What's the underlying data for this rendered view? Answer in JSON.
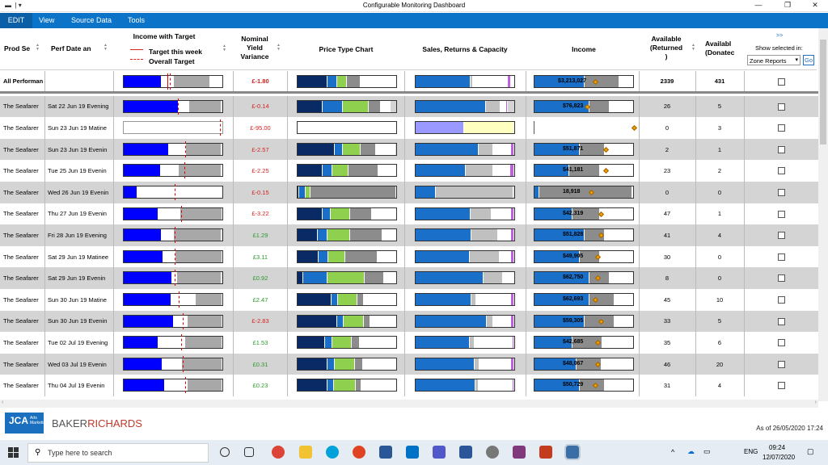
{
  "window": {
    "title": "Configurable Monitoring Dashboard",
    "minimize": "—",
    "maximize": "❐",
    "close": "✕"
  },
  "menu": {
    "items": [
      "EDIT",
      "View",
      "Source Data",
      "Tools"
    ]
  },
  "header": {
    "prod": "Prod Se",
    "perf_date": "Perf Date an",
    "income_target": "Income with Target",
    "legend_week": "Target this week",
    "legend_overall": "Overall Target",
    "nyv_line1": "Nominal",
    "nyv_line2": "Yield",
    "nyv_line3": "Variance",
    "price_type": "Price Type Chart",
    "sales_returns": "Sales, Returns & Capacity",
    "income": "Income",
    "avail_ret1": "Available",
    "avail_ret2": "(Returned",
    "avail_ret3": ")",
    "avail_don1": "Availabl",
    "avail_don2": "(Donatec",
    "show_selected": "Show selected in:",
    "expander": ">>",
    "zone_select": "Zone Reports",
    "go": "Go"
  },
  "colors": {
    "income_blue": "#0000ff",
    "dark_navy": "#0a2a66",
    "mid_blue": "#1a6fc9",
    "light_green": "#8fd14f",
    "grey": "#8c8c8c",
    "light_grey": "#c0c0c0",
    "red_text": "#d42020",
    "green_text": "#2a9a2a",
    "pale_yellow": "#ffffc0",
    "lavender": "#9999ff",
    "violet": "#c060e0",
    "diamond": "#f0a000"
  },
  "rows": [
    {
      "prod": "All Performan",
      "date": "",
      "bold": true,
      "inc": [
        0.38,
        0.12,
        0.36
      ],
      "tgt": 0.47,
      "tgt2": 0.47,
      "nyv": "£-1.80",
      "nyv_color": "red",
      "pt": [
        0.3,
        0.1,
        0.1,
        0.14,
        0.36
      ],
      "src": [
        0.55,
        0.02,
        0.35,
        0.03
      ],
      "incv": "$3,213,027",
      "incb": [
        0.5,
        0.35
      ],
      "dia": 0.6,
      "ret": "2339",
      "don": "431",
      "shade": false
    },
    {
      "prod": "The Seafarer",
      "date": "Sat 22 Jun 19 Evening",
      "inc": [
        0.55,
        0.1,
        0.33
      ],
      "tgt": 0.55,
      "nyv": "£-0.14",
      "nyv_color": "red",
      "pt": [
        0.25,
        0.2,
        0.26,
        0.12,
        0.1
      ],
      "src": [
        0.7,
        0.15,
        0.05,
        0.02
      ],
      "incv": "$76,823",
      "incb": [
        0.55,
        0.2
      ],
      "dia": 0.52,
      "ret": "26",
      "don": "5",
      "shade": true
    },
    {
      "prod": "The Seafarer",
      "date": "Sun 23 Jun 19 Matine",
      "inc": [
        0.0,
        0.0,
        0.0
      ],
      "tgt": 0.97,
      "empty": true,
      "nyv": "£-95.00",
      "nyv_color": "red",
      "pt": [
        0,
        0,
        0,
        0,
        1
      ],
      "ptempty": true,
      "src": [
        0.49,
        0.5,
        0,
        0
      ],
      "srcempty": true,
      "incv": "",
      "incb": [
        0,
        0
      ],
      "dia": 0.98,
      "ret": "0",
      "don": "3",
      "shade": false
    },
    {
      "prod": "The Seafarer",
      "date": "Sun 23 Jun 19 Evenin",
      "inc": [
        0.45,
        0.17,
        0.36
      ],
      "tgt": 0.62,
      "nyv": "£-2.57",
      "nyv_color": "red",
      "pt": [
        0.37,
        0.08,
        0.18,
        0.15,
        0.2
      ],
      "src": [
        0.63,
        0.15,
        0.18,
        0.03
      ],
      "incv": "$51,871",
      "incb": [
        0.45,
        0.25
      ],
      "dia": 0.7,
      "ret": "2",
      "don": "1",
      "shade": true
    },
    {
      "prod": "The Seafarer",
      "date": "Tue 25 Jun 19 Evenin",
      "inc": [
        0.37,
        0.18,
        0.43
      ],
      "tgt": 0.61,
      "nyv": "£-2.25",
      "nyv_color": "red",
      "pt": [
        0.25,
        0.1,
        0.17,
        0.3,
        0.18
      ],
      "src": [
        0.5,
        0.28,
        0.17,
        0.04
      ],
      "incv": "$41,181",
      "incb": [
        0.35,
        0.3
      ],
      "dia": 0.7,
      "ret": "23",
      "don": "2",
      "shade": false
    },
    {
      "prod": "The Seafarer",
      "date": "Wed 26 Jun 19 Evenin",
      "inc": [
        0.14,
        0.84,
        0
      ],
      "tgt": 0.52,
      "nyv": "£-0.15",
      "nyv_color": "red",
      "pt": [
        0.02,
        0.06,
        0.05,
        0.86,
        0
      ],
      "src": [
        0.2,
        0.78,
        0,
        0
      ],
      "incv": "18,918",
      "incb": [
        0.05,
        0.93
      ],
      "dia": 0.56,
      "ret": "0",
      "don": "0",
      "shade": true
    },
    {
      "prod": "The Seafarer",
      "date": "Thu 27 Jun 19 Evenin",
      "inc": [
        0.35,
        0.22,
        0.42
      ],
      "tgt": 0.58,
      "nyv": "£-3.22",
      "nyv_color": "red",
      "pt": [
        0.25,
        0.08,
        0.2,
        0.22,
        0.24
      ],
      "src": [
        0.56,
        0.22,
        0.2,
        0.03
      ],
      "incv": "$42,319",
      "incb": [
        0.38,
        0.27
      ],
      "dia": 0.65,
      "ret": "47",
      "don": "1",
      "shade": false
    },
    {
      "prod": "The Seafarer",
      "date": "Fri 28 Jun 19 Evening",
      "inc": [
        0.38,
        0.12,
        0.48
      ],
      "tgt": 0.52,
      "nyv": "£1.29",
      "nyv_color": "green",
      "pt": [
        0.2,
        0.1,
        0.23,
        0.32,
        0.14
      ],
      "src": [
        0.56,
        0.27,
        0.13,
        0.03
      ],
      "incv": "$51,828",
      "incb": [
        0.5,
        0.2
      ],
      "dia": 0.65,
      "ret": "41",
      "don": "4",
      "shade": true
    },
    {
      "prod": "The Seafarer",
      "date": "Sat 29 Jun 19 Matinee",
      "inc": [
        0.4,
        0.12,
        0.47
      ],
      "tgt": 0.52,
      "nyv": "£3.11",
      "nyv_color": "green",
      "pt": [
        0.21,
        0.1,
        0.17,
        0.32,
        0.19
      ],
      "src": [
        0.55,
        0.3,
        0.12,
        0.03
      ],
      "incv": "$49,905",
      "incb": [
        0.45,
        0.2
      ],
      "dia": 0.62,
      "ret": "30",
      "don": "0",
      "shade": false
    },
    {
      "prod": "The Seafarer",
      "date": "Sat 29 Jun 19 Evenin",
      "inc": [
        0.48,
        0.05,
        0.45
      ],
      "tgt": 0.52,
      "nyv": "£0.92",
      "nyv_color": "green",
      "pt": [
        0.06,
        0.24,
        0.37,
        0.2,
        0.12
      ],
      "src": [
        0.68,
        0.2,
        0.11,
        0
      ],
      "incv": "$62,750",
      "incb": [
        0.55,
        0.2
      ],
      "dia": 0.62,
      "ret": "8",
      "don": "0",
      "shade": true
    },
    {
      "prod": "The Seafarer",
      "date": "Sun 30 Jun 19 Matine",
      "inc": [
        0.48,
        0.25,
        0.27
      ],
      "tgt": 0.56,
      "nyv": "£2.47",
      "nyv_color": "green",
      "pt": [
        0.34,
        0.07,
        0.2,
        0.06,
        0.33
      ],
      "src": [
        0.57,
        0.05,
        0.36,
        0.03
      ],
      "incv": "$62,693",
      "incb": [
        0.55,
        0.25
      ],
      "dia": 0.6,
      "ret": "45",
      "don": "10",
      "shade": false
    },
    {
      "prod": "The Seafarer",
      "date": "Sun 30 Jun 19 Evenin",
      "inc": [
        0.5,
        0.14,
        0.34
      ],
      "tgt": 0.6,
      "nyv": "£-2.83",
      "nyv_color": "red",
      "pt": [
        0.4,
        0.07,
        0.2,
        0.07,
        0.26
      ],
      "src": [
        0.72,
        0.07,
        0.18,
        0.03
      ],
      "incv": "$59,305",
      "incb": [
        0.5,
        0.3
      ],
      "dia": 0.65,
      "ret": "33",
      "don": "5",
      "shade": true
    },
    {
      "prod": "The Seafarer",
      "date": "Tue 02 Jul 19 Evening",
      "inc": [
        0.35,
        0.27,
        0.37
      ],
      "tgt": 0.58,
      "nyv": "£1.53",
      "nyv_color": "green",
      "pt": [
        0.28,
        0.07,
        0.2,
        0.08,
        0.37
      ],
      "src": [
        0.55,
        0.05,
        0.38,
        0.02
      ],
      "incv": "$42,685",
      "incb": [
        0.38,
        0.3
      ],
      "dia": 0.62,
      "ret": "35",
      "don": "6",
      "shade": false
    },
    {
      "prod": "The Seafarer",
      "date": "Wed 03 Jul 19 Evenin",
      "inc": [
        0.39,
        0.19,
        0.41
      ],
      "tgt": 0.6,
      "nyv": "£0.31",
      "nyv_color": "green",
      "pt": [
        0.3,
        0.08,
        0.2,
        0.08,
        0.34
      ],
      "src": [
        0.6,
        0.05,
        0.32,
        0.03
      ],
      "incv": "$48,067",
      "incb": [
        0.42,
        0.25
      ],
      "dia": 0.62,
      "ret": "46",
      "don": "20",
      "shade": true
    },
    {
      "prod": "The Seafarer",
      "date": "Thu 04 Jul 19 Evenin",
      "inc": [
        0.41,
        0.23,
        0.35
      ],
      "tgt": 0.62,
      "nyv": "£0.23",
      "nyv_color": "green",
      "pt": [
        0.3,
        0.07,
        0.22,
        0.06,
        0.35
      ],
      "src": [
        0.61,
        0.03,
        0.34,
        0.02
      ],
      "incv": "$50,729",
      "incb": [
        0.45,
        0.25
      ],
      "dia": 0.6,
      "ret": "31",
      "don": "4",
      "shade": false
    }
  ],
  "footer": {
    "jca_line1": "JCA",
    "jca_sub": "Arts\nMarketing",
    "brand_baker": "BAKER",
    "brand_richards": "RICHARDS",
    "as_of": "As of 26/05/2020 17:24"
  },
  "taskbar": {
    "search_placeholder": "Type here to search",
    "time": "09:24",
    "date": "12/07/2020",
    "lang": "ENG"
  }
}
